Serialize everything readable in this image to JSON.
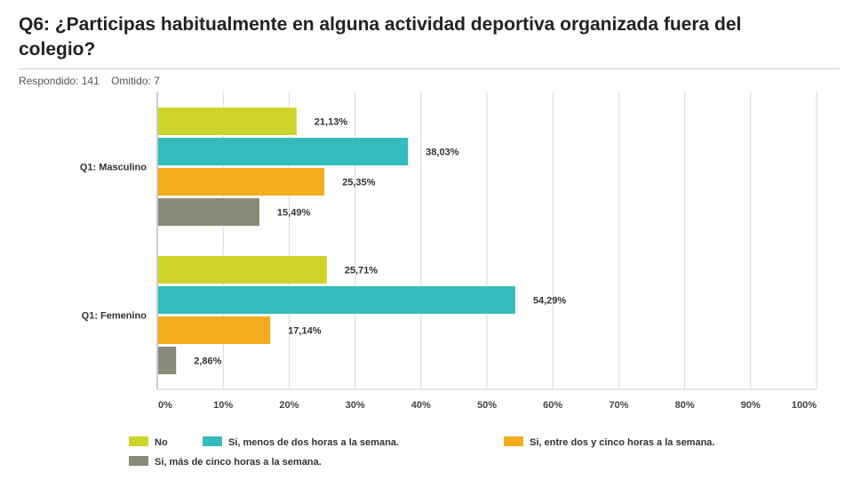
{
  "question": {
    "title": "Q6: ¿Participas habitualmente en alguna actividad deportiva organizada fuera del colegio?"
  },
  "summary": {
    "answered": "Respondido: 141",
    "skipped": "Omitido: 7"
  },
  "colors": {
    "series": [
      "#cdd52b",
      "#33bcbd",
      "#f5ab1e",
      "#898a78"
    ],
    "grid": "#d9d9d9",
    "plot_bg": "#ffffff"
  },
  "chart_data": {
    "type": "bar",
    "orientation": "horizontal",
    "categories": [
      "Q1: Masculino",
      "Q1: Femenino"
    ],
    "series": [
      {
        "name": "No",
        "values": [
          21.13,
          25.71
        ]
      },
      {
        "name": "Si, menos de dos horas a la semana.",
        "values": [
          38.03,
          54.29
        ]
      },
      {
        "name": "Si, entre dos y cinco horas a la semana.",
        "values": [
          25.35,
          17.14
        ]
      },
      {
        "name": "Si, más de cinco horas a la semana.",
        "values": [
          15.49,
          2.86
        ]
      }
    ],
    "data_labels": [
      [
        "21,13%",
        "25,71%"
      ],
      [
        "38,03%",
        "54,29%"
      ],
      [
        "25,35%",
        "17,14%"
      ],
      [
        "15,49%",
        "2,86%"
      ]
    ],
    "xlim": [
      0,
      100
    ],
    "x_ticks": [
      "0%",
      "10%",
      "20%",
      "30%",
      "40%",
      "50%",
      "60%",
      "70%",
      "80%",
      "90%",
      "100%"
    ],
    "grid": true,
    "legend_position": "bottom"
  }
}
